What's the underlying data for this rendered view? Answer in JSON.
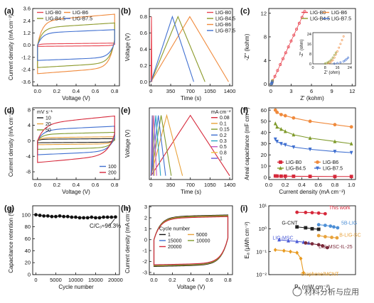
{
  "watermark": "材料分析与应用",
  "chart_data": [
    {
      "panel": "(a)",
      "type": "line",
      "xlabel": "Voltage (V)",
      "ylabel": "Current density (mA cm⁻²)",
      "xlim": [
        -0.05,
        0.85
      ],
      "ylim": [
        -4.0,
        3.6
      ],
      "xticks": [
        "0.0",
        "0.2",
        "0.4",
        "0.6",
        "0.8"
      ],
      "xtickv": [
        0,
        0.2,
        0.4,
        0.6,
        0.8
      ],
      "yticks": [
        "3.6",
        "2.4",
        "1.2",
        "0.0",
        "-1.2",
        "-2.4",
        "-3.6"
      ],
      "ytickv": [
        3.6,
        2.4,
        1.2,
        0,
        -1.2,
        -2.4,
        -3.6
      ],
      "legend_cols": 2,
      "legend_pos": "top-left",
      "series": [
        {
          "name": "LIG-B0",
          "color": "#e8434f",
          "cv": {
            "a": 0.12,
            "b": -0.12,
            "tilt": 0.1,
            "k": 0.03
          }
        },
        {
          "name": "LIG-B6",
          "color": "#f08a3c",
          "cv": {
            "a": 2.4,
            "b": -2.8,
            "tilt": 0.8,
            "k": 0.05
          }
        },
        {
          "name": "LIG-B4.5",
          "color": "#8c9a2b",
          "cv": {
            "a": 1.7,
            "b": -2.2,
            "tilt": 0.6,
            "k": 0.05
          }
        },
        {
          "name": "LIG-B7.5",
          "color": "#3f6fd0",
          "cv": {
            "a": 1.2,
            "b": -1.5,
            "tilt": 0.4,
            "k": 0.05
          }
        }
      ]
    },
    {
      "panel": "(b)",
      "type": "line",
      "xlabel": "Time (s)",
      "ylabel": "Voltage (V)",
      "xlim": [
        -30,
        1450
      ],
      "ylim": [
        -0.05,
        0.9
      ],
      "xticks": [
        "0",
        "350",
        "700",
        "1050",
        "1400"
      ],
      "xtickv": [
        0,
        350,
        700,
        1050,
        1400
      ],
      "yticks": [
        "0.0",
        "0.2",
        "0.4",
        "0.6",
        "0.8"
      ],
      "ytickv": [
        0,
        0.2,
        0.4,
        0.6,
        0.8
      ],
      "legend_cols": 1,
      "legend_pos": "top-right",
      "series": [
        {
          "name": "LIG-B0",
          "color": "#e8434f",
          "x": [
            0,
            8,
            16
          ],
          "y": [
            0,
            0.8,
            0
          ]
        },
        {
          "name": "LIG-B4.5",
          "color": "#8c9a2b",
          "x": [
            0,
            480,
            960
          ],
          "y": [
            0,
            0.8,
            0
          ]
        },
        {
          "name": "LIG-B6",
          "color": "#f08a3c",
          "x": [
            0,
            690,
            1380
          ],
          "y": [
            0,
            0.8,
            0
          ]
        },
        {
          "name": "LIG-B7.5",
          "color": "#3f6fd0",
          "x": [
            0,
            380,
            760
          ],
          "y": [
            0,
            0.8,
            0
          ]
        }
      ]
    },
    {
      "panel": "(c)",
      "type": "scatter",
      "xlabel": "Z' (kohm)",
      "ylabel": "-Z'' (kohm)",
      "xlim": [
        -0.3,
        12.5
      ],
      "ylim": [
        -0.3,
        12.8
      ],
      "xticks": [
        "0",
        "3",
        "6",
        "9",
        "12"
      ],
      "xtickv": [
        0,
        3,
        6,
        9,
        12
      ],
      "yticks": [
        "0",
        "4",
        "8",
        "12"
      ],
      "ytickv": [
        0,
        4,
        8,
        12
      ],
      "legend_cols": 2,
      "legend_pos": "top-right",
      "series": [
        {
          "name": "LIG-B0",
          "color": "#e8434f",
          "x": [
            0.2,
            0.6,
            1.0,
            1.4,
            1.8,
            2.2,
            2.6,
            3.0,
            3.4,
            3.8,
            4.2,
            4.6,
            5.0
          ],
          "y": [
            0.3,
            1.3,
            2.3,
            3.3,
            4.3,
            5.3,
            6.3,
            7.3,
            8.3,
            9.3,
            10.3,
            11.3,
            12.3
          ]
        },
        {
          "name": "LIG-B6",
          "color": "#f08a3c",
          "x": [
            0.15,
            0.2,
            0.25
          ],
          "y": [
            0.05,
            0.3,
            0.6
          ]
        },
        {
          "name": "LIG-B4.5",
          "color": "#8c9a2b",
          "x": [
            0.12,
            0.17,
            0.22
          ],
          "y": [
            0.05,
            0.25,
            0.5
          ]
        },
        {
          "name": "LIG-B7.5",
          "color": "#3f6fd0",
          "x": [
            0.1,
            0.15,
            0.2
          ],
          "y": [
            0.04,
            0.2,
            0.4
          ]
        }
      ],
      "inset": {
        "xlabel": "Z' (ohm)",
        "ylabel": "-Z'' (ohm)",
        "xlim": [
          0,
          25
        ],
        "ylim": [
          0,
          25
        ],
        "xticks": [
          "0",
          "8",
          "16",
          "24"
        ],
        "xtickv": [
          0,
          8,
          16,
          24
        ],
        "yticks": [
          "0",
          "8",
          "16",
          "24"
        ],
        "ytickv": [
          0,
          8,
          16,
          24
        ],
        "series": [
          {
            "name": "LIG-B6",
            "color": "#f08a3c",
            "x": [
              10,
              11,
              12,
              13,
              14,
              15,
              16,
              17,
              18,
              19,
              20
            ],
            "y": [
              0.5,
              1,
              1.8,
              3,
              5,
              7.5,
              10,
              13,
              16,
              19,
              22
            ]
          },
          {
            "name": "LIG-B4.5",
            "color": "#8c9a2b",
            "x": [
              8,
              9,
              10,
              11,
              12,
              13,
              14,
              15
            ],
            "y": [
              0.3,
              0.7,
              1.3,
              2.2,
              3.4,
              5,
              7,
              9
            ]
          },
          {
            "name": "LIG-B7.5",
            "color": "#3f6fd0",
            "x": [
              14,
              16,
              18,
              20,
              21,
              22,
              23
            ],
            "y": [
              0.2,
              0.6,
              1.2,
              2,
              2.8,
              3.8,
              5
            ]
          }
        ]
      }
    },
    {
      "panel": "(d)",
      "type": "line",
      "xlabel": "Voltage (V)",
      "ylabel": "Current density (mA cm⁻²)",
      "xlim": [
        -0.05,
        0.85
      ],
      "ylim": [
        -10,
        8.5
      ],
      "xticks": [
        "0.0",
        "0.2",
        "0.4",
        "0.6",
        "0.8"
      ],
      "xtickv": [
        0,
        0.2,
        0.4,
        0.6,
        0.8
      ],
      "yticks": [
        "8",
        "4",
        "0",
        "-4",
        "-8"
      ],
      "ytickv": [
        8,
        4,
        0,
        -4,
        -8
      ],
      "legend_title": "mV s⁻¹",
      "legend_cols": 1,
      "legend_pos": "top-left",
      "legend2_pos": "bottom-right",
      "legend2_names": [
        "100",
        "200"
      ],
      "series": [
        {
          "name": "10",
          "color": "#222222",
          "cv": {
            "a": 0.4,
            "b": -0.5,
            "tilt": 0.2,
            "k": 0.03
          }
        },
        {
          "name": "20",
          "color": "#e8a23a",
          "cv": {
            "a": 0.8,
            "b": -1.0,
            "tilt": 0.3,
            "k": 0.04
          }
        },
        {
          "name": "50",
          "color": "#7f9a2b",
          "cv": {
            "a": 1.7,
            "b": -2.2,
            "tilt": 0.6,
            "k": 0.05
          }
        },
        {
          "name": "100",
          "color": "#3f6fd0",
          "cv": {
            "a": 2.8,
            "b": -3.6,
            "tilt": 1.2,
            "k": 0.06
          }
        },
        {
          "name": "200",
          "color": "#d6283a",
          "cv": {
            "a": 4.4,
            "b": -5.6,
            "tilt": 2.5,
            "k": 0.07
          }
        }
      ]
    },
    {
      "panel": "(e)",
      "type": "line",
      "xlabel": "Time (s)",
      "ylabel": "Voltage (V)",
      "xlim": [
        -30,
        1450
      ],
      "ylim": [
        -0.05,
        0.9
      ],
      "xticks": [
        "0",
        "350",
        "700",
        "1050",
        "1400"
      ],
      "xtickv": [
        0,
        350,
        700,
        1050,
        1400
      ],
      "yticks": [],
      "ytickv": [],
      "legend_title": "mA cm⁻²",
      "legend_cols": 1,
      "legend_pos": "top-right",
      "series": [
        {
          "name": "0.08",
          "color": "#d6283a",
          "x": [
            0,
            700,
            1400
          ],
          "y": [
            0,
            0.8,
            0
          ]
        },
        {
          "name": "0.1",
          "color": "#e8a23a",
          "x": [
            0,
            280,
            560
          ],
          "y": [
            0,
            0.8,
            0
          ]
        },
        {
          "name": "0.15",
          "color": "#7f9a2b",
          "x": [
            0,
            180,
            360
          ],
          "y": [
            0,
            0.8,
            0
          ]
        },
        {
          "name": "0.2",
          "color": "#3f6fd0",
          "x": [
            0,
            130,
            260
          ],
          "y": [
            0,
            0.8,
            0
          ]
        },
        {
          "name": "0.3",
          "color": "#29a3c4",
          "x": [
            0,
            85,
            170
          ],
          "y": [
            0,
            0.8,
            0
          ]
        },
        {
          "name": "0.5",
          "color": "#c25ac4",
          "x": [
            0,
            50,
            100
          ],
          "y": [
            0,
            0.8,
            0
          ]
        },
        {
          "name": "0.8",
          "color": "#f0c040",
          "x": [
            0,
            30,
            60
          ],
          "y": [
            0,
            0.8,
            0
          ]
        },
        {
          "name": "1",
          "color": "#6b5bd6",
          "x": [
            0,
            22,
            44
          ],
          "y": [
            0,
            0.8,
            0
          ]
        }
      ]
    },
    {
      "panel": "(f)",
      "type": "line",
      "xlabel": "Current density (mA cm⁻²)",
      "ylabel": "Areal capacitance (mF cm⁻²)",
      "xlim": [
        0.0,
        1.05
      ],
      "ylim": [
        -2,
        62
      ],
      "xticks": [
        "0.0",
        "0.2",
        "0.4",
        "0.6",
        "0.8",
        "1.0"
      ],
      "xtickv": [
        0,
        0.2,
        0.4,
        0.6,
        0.8,
        1.0
      ],
      "yticks": [
        "0",
        "10",
        "20",
        "30",
        "40",
        "50",
        "60"
      ],
      "ytickv": [
        0,
        10,
        20,
        30,
        40,
        50,
        60
      ],
      "legend_cols": 2,
      "legend_pos": "bottom",
      "x": [
        0.08,
        0.1,
        0.15,
        0.2,
        0.3,
        0.5,
        0.8,
        1.0
      ],
      "series": [
        {
          "name": "LIG-B0",
          "color": "#d6283a",
          "marker": "square",
          "y": [
            1.2,
            1.1,
            1.0,
            1.0,
            0.9,
            0.8,
            0.7,
            0.7
          ]
        },
        {
          "name": "LIG-B6",
          "color": "#f08a3c",
          "marker": "circle",
          "y": [
            60,
            58,
            56,
            55,
            53,
            50,
            47,
            45
          ]
        },
        {
          "name": "LIG-B4.5",
          "color": "#7f9a2b",
          "marker": "triangle",
          "y": [
            48,
            45,
            43,
            41,
            38,
            35,
            32,
            30
          ]
        },
        {
          "name": "LIG-B7.5",
          "color": "#3f6fd0",
          "marker": "triangle-down",
          "y": [
            34,
            32,
            30,
            29,
            27,
            25,
            23,
            22
          ]
        }
      ]
    },
    {
      "panel": "(g)",
      "type": "line",
      "xlabel": "Cycle number",
      "ylabel": "Capacitance retention (%)",
      "xlim": [
        -800,
        21000
      ],
      "ylim": [
        0,
        115
      ],
      "xticks": [
        "0",
        "5000",
        "10000",
        "15000",
        "20000"
      ],
      "xtickv": [
        0,
        5000,
        10000,
        15000,
        20000
      ],
      "yticks": [
        "0",
        "20",
        "40",
        "60",
        "80",
        "100"
      ],
      "ytickv": [
        0,
        20,
        40,
        60,
        80,
        100
      ],
      "annotation": "C/C₀≈96.3%",
      "series": [
        {
          "name": "",
          "color": "#111111",
          "x": [
            0,
            1000,
            2000,
            3000,
            4000,
            5000,
            6000,
            7000,
            8000,
            9000,
            10000,
            11000,
            12000,
            13000,
            14000,
            15000,
            16000,
            17000,
            18000,
            19000,
            20000
          ],
          "y": [
            100,
            99,
            98,
            98,
            97,
            97,
            98,
            97,
            97,
            96,
            96,
            95,
            95,
            95,
            96,
            95,
            95,
            96,
            96,
            96,
            96.3
          ]
        }
      ]
    },
    {
      "panel": "(h)",
      "type": "line",
      "xlabel": "Voltage (V)",
      "ylabel": "Current density (mA cm⁻²)",
      "xlim": [
        -0.05,
        0.85
      ],
      "ylim": [
        -3.2,
        3.1
      ],
      "xticks": [
        "0.0",
        "0.2",
        "0.4",
        "0.6",
        "0.8"
      ],
      "xtickv": [
        0,
        0.2,
        0.4,
        0.6,
        0.8
      ],
      "yticks": [
        "3",
        "2",
        "1",
        "0",
        "-1",
        "-2",
        "-3"
      ],
      "ytickv": [
        3,
        2,
        1,
        0,
        -1,
        -2,
        -3
      ],
      "legend_title": "Cycle number",
      "legend_cols": 2,
      "legend_pos": "center",
      "series": [
        {
          "name": "1",
          "color": "#111111",
          "cv": {
            "a": 2.1,
            "b": -2.45,
            "tilt": 0.2,
            "k": 0.07
          }
        },
        {
          "name": "5000",
          "color": "#e8a23a",
          "cv": {
            "a": 2.05,
            "b": -2.4,
            "tilt": 0.2,
            "k": 0.07
          }
        },
        {
          "name": "15000",
          "color": "#3f6fd0",
          "cv": {
            "a": 2.0,
            "b": -2.35,
            "tilt": 0.2,
            "k": 0.07
          }
        },
        {
          "name": "10000",
          "color": "#7f9a2b",
          "cv": {
            "a": 2.02,
            "b": -2.38,
            "tilt": 0.2,
            "k": 0.07
          }
        },
        {
          "name": "20000",
          "color": "#d6283a",
          "cv": {
            "a": 1.95,
            "b": -2.3,
            "tilt": 0.2,
            "k": 0.07
          }
        }
      ]
    },
    {
      "panel": "(i)",
      "type": "line",
      "xlabel": "Pₐ (mW cm⁻²)",
      "ylabel": "Eₐ (μWh cm⁻²)",
      "xlog": true,
      "ylog": true,
      "xlim": [
        0.001,
        10
      ],
      "ylim": [
        0.01,
        10
      ],
      "xticks": [],
      "xtickv": [],
      "yticks": [
        "10¹",
        "10⁰",
        "10⁻¹",
        "10⁻²"
      ],
      "ytickv": [
        10,
        1,
        0.1,
        0.01
      ],
      "series": [
        {
          "name": "This work",
          "color": "#d6283a",
          "marker": "circle",
          "x": [
            0.02,
            0.05,
            0.1,
            0.2,
            0.4
          ],
          "y": [
            5.2,
            5.1,
            5.0,
            4.8,
            4.5
          ]
        },
        {
          "name": "5B-LIG",
          "color": "#4d8fd6",
          "marker": "circle",
          "x": [
            0.2,
            0.4,
            0.7,
            1.0,
            1.5
          ],
          "y": [
            1.5,
            1.4,
            1.3,
            1.2,
            1.1
          ]
        },
        {
          "name": "G-CNT",
          "color": "#222222",
          "marker": "square",
          "x": [
            0.02,
            0.05,
            0.1,
            0.2
          ],
          "y": [
            1.2,
            1.1,
            1.0,
            0.95
          ]
        },
        {
          "name": "B-LIG-SC",
          "color": "#e8a23a",
          "marker": "circle",
          "x": [
            0.2,
            0.4,
            0.8,
            1.4
          ],
          "y": [
            0.5,
            0.45,
            0.42,
            0.4
          ]
        },
        {
          "name": "LIG-MSC",
          "color": "#4b5bd6",
          "marker": "triangle",
          "x": [
            0.003,
            0.008,
            0.02,
            0.04,
            0.07
          ],
          "y": [
            0.33,
            0.3,
            0.28,
            0.26,
            0.24
          ]
        },
        {
          "name": "LIG-MSC-IL-25",
          "color": "#7a2a3a",
          "marker": "circle",
          "x": [
            0.05,
            0.1,
            0.2,
            0.3,
            0.5
          ],
          "y": [
            0.24,
            0.22,
            0.2,
            0.18,
            0.15
          ]
        },
        {
          "name": "Graphene/MCNT",
          "color": "#e89a20",
          "marker": "diamond",
          "x": [
            0.002,
            0.005,
            0.01,
            0.02,
            0.03,
            0.04
          ],
          "y": [
            0.12,
            0.11,
            0.1,
            0.09,
            0.05,
            0.012
          ]
        }
      ]
    }
  ]
}
